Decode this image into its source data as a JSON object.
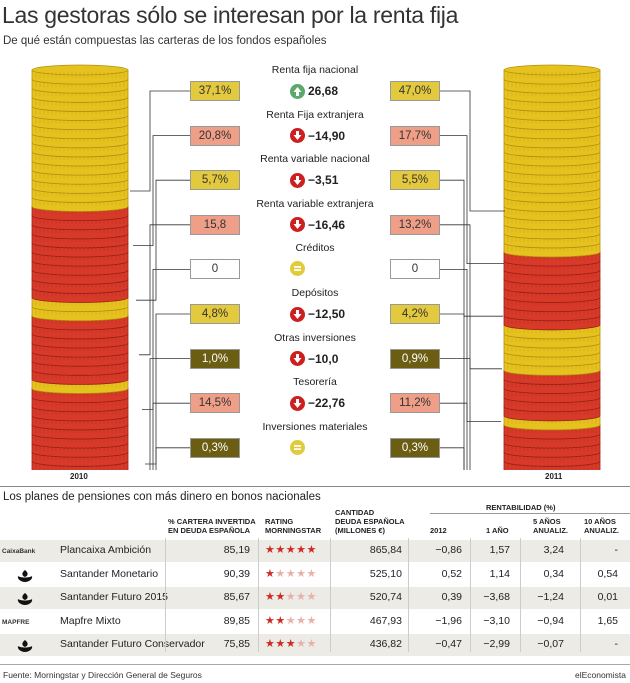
{
  "title": "Las gestoras sólo se interesan por la renta fija",
  "subtitle": "De qué están compuestas las carteras de los fondos españoles",
  "colors": {
    "renta_fija_nacional": "#e3c93e",
    "renta_fija_extranjera": "#ef9f87",
    "renta_variable_nacional": "#e3c93e",
    "renta_variable_extranjera": "#ef9f87",
    "depositos": "#e3c93e",
    "otras_inversiones": "#6b5e12",
    "tesoreria": "#ef9f87",
    "inversiones_materiales": "#6b5e12",
    "coin_gold": "#e6c21f",
    "coin_red": "#d83a2a",
    "up": "#5aa86a",
    "down": "#cc1f1f",
    "equal": "#e2cb3a"
  },
  "chart_data": [
    {
      "type": "table",
      "years": [
        "2010",
        "2011"
      ],
      "rows": [
        {
          "category": "Renta fija nacional",
          "v2010": "37,1%",
          "v2011": "47,0%",
          "change": "26,68",
          "direction": "up",
          "color_key": "renta_fija_nacional"
        },
        {
          "category": "Renta Fija extranjera",
          "v2010": "20,8%",
          "v2011": "17,7%",
          "change": "−14,90",
          "direction": "down",
          "color_key": "renta_fija_extranjera"
        },
        {
          "category": "Renta variable nacional",
          "v2010": "5,7%",
          "v2011": "5,5%",
          "change": "−3,51",
          "direction": "down",
          "color_key": "renta_variable_nacional"
        },
        {
          "category": "Renta variable extranjera",
          "v2010": "15,8",
          "v2011": "13,2%",
          "change": "−16,46",
          "direction": "down",
          "color_key": "renta_variable_extranjera"
        },
        {
          "category": "Créditos",
          "v2010": "0",
          "v2011": "0",
          "change": "",
          "direction": "equal",
          "color_key": "none"
        },
        {
          "category": "Depósitos",
          "v2010": "4,8%",
          "v2011": "4,2%",
          "change": "−12,50",
          "direction": "down",
          "color_key": "depositos"
        },
        {
          "category": "Otras inversiones",
          "v2010": "1,0%",
          "v2011": "0,9%",
          "change": "−10,0",
          "direction": "down",
          "color_key": "otras_inversiones"
        },
        {
          "category": "Tesorería",
          "v2010": "14,5%",
          "v2011": "11,2%",
          "change": "−22,76",
          "direction": "down",
          "color_key": "tesoreria"
        },
        {
          "category": "Inversiones materiales",
          "v2010": "0,3%",
          "v2011": "0,3%",
          "change": "",
          "direction": "equal",
          "color_key": "inversiones_materiales"
        }
      ],
      "coin_stacks": [
        {
          "year": "2010",
          "coins_from_top": [
            "gold",
            "gold",
            "gold",
            "gold",
            "gold",
            "gold",
            "gold",
            "gold",
            "gold",
            "gold",
            "gold",
            "gold",
            "gold",
            "gold",
            "gold",
            "red",
            "red",
            "red",
            "red",
            "red",
            "red",
            "red",
            "red",
            "red",
            "red",
            "gold",
            "gold",
            "red",
            "red",
            "red",
            "red",
            "red",
            "red",
            "red",
            "gold",
            "red",
            "red",
            "red",
            "red",
            "red",
            "red",
            "red",
            "red",
            "red",
            "red"
          ]
        },
        {
          "year": "2011",
          "coins_from_top": [
            "gold",
            "gold",
            "gold",
            "gold",
            "gold",
            "gold",
            "gold",
            "gold",
            "gold",
            "gold",
            "gold",
            "gold",
            "gold",
            "gold",
            "gold",
            "gold",
            "gold",
            "gold",
            "gold",
            "gold",
            "red",
            "red",
            "red",
            "red",
            "red",
            "red",
            "red",
            "red",
            "gold",
            "gold",
            "gold",
            "gold",
            "gold",
            "red",
            "red",
            "red",
            "red",
            "red",
            "gold",
            "red",
            "red",
            "red",
            "red",
            "red",
            "red"
          ]
        }
      ]
    },
    {
      "type": "table",
      "title": "Los planes de pensiones con más dinero en bonos nacionales",
      "columns": [
        "% CARTERA INVERTIDA EN DEUDA ESPAÑOLA",
        "RATING MORNINGSTAR",
        "CANTIDAD DEUDA ESPAÑOLA (MILLONES €)",
        "2012",
        "1 AÑO",
        "5 AÑOS ANUALIZ.",
        "10 AÑOS ANUALIZ."
      ],
      "group_header": "RENTABILIDAD (%)",
      "rows": [
        {
          "logo": "CaixaBank",
          "logo_icon": "caixa-star-icon",
          "name": "Plancaixa Ambición",
          "pct": "85,19",
          "rating": 5,
          "amount": "865,84",
          "y2012": "−0,86",
          "y1": "1,57",
          "y5": "3,24",
          "y10": "-"
        },
        {
          "logo": "",
          "logo_icon": "santander-flame-icon",
          "name": "Santander Monetario",
          "pct": "90,39",
          "rating": 1,
          "amount": "525,10",
          "y2012": "0,52",
          "y1": "1,14",
          "y5": "0,34",
          "y10": "0,54"
        },
        {
          "logo": "",
          "logo_icon": "santander-flame-icon",
          "name": "Santander Futuro 2015",
          "pct": "85,67",
          "rating": 2,
          "amount": "520,74",
          "y2012": "0,39",
          "y1": "−3,68",
          "y5": "−1,24",
          "y10": "0,01"
        },
        {
          "logo": "MAPFRE",
          "logo_icon": "mapfre-globe-icon",
          "name": "Mapfre Mixto",
          "pct": "89,85",
          "rating": 2,
          "amount": "467,93",
          "y2012": "−1,96",
          "y1": "−3,10",
          "y5": "−0,94",
          "y10": "1,65"
        },
        {
          "logo": "",
          "logo_icon": "santander-flame-icon",
          "name": "Santander Futuro Conservador",
          "pct": "75,85",
          "rating": 3,
          "amount": "436,82",
          "y2012": "−0,47",
          "y1": "−2,99",
          "y5": "−0,07",
          "y10": "-"
        }
      ]
    }
  ],
  "headers": {
    "pct": [
      "% CARTERA INVERTIDA",
      "EN DEUDA ESPAÑOLA"
    ],
    "rating": [
      "RATING",
      "MORNINGSTAR"
    ],
    "amount": [
      "CANTIDAD",
      "DEUDA ESPAÑOLA",
      "(MILLONES €)"
    ],
    "group": "RENTABILIDAD (%)",
    "y2012": "2012",
    "y1": "1 AÑO",
    "y5": [
      "5 AÑOS",
      "ANUALIZ."
    ],
    "y10": [
      "10 AÑOS",
      "ANUALIZ."
    ]
  },
  "footer": {
    "source": "Fuente: Morningstar y Dirección General de Seguros",
    "brand": "elEconomista"
  }
}
